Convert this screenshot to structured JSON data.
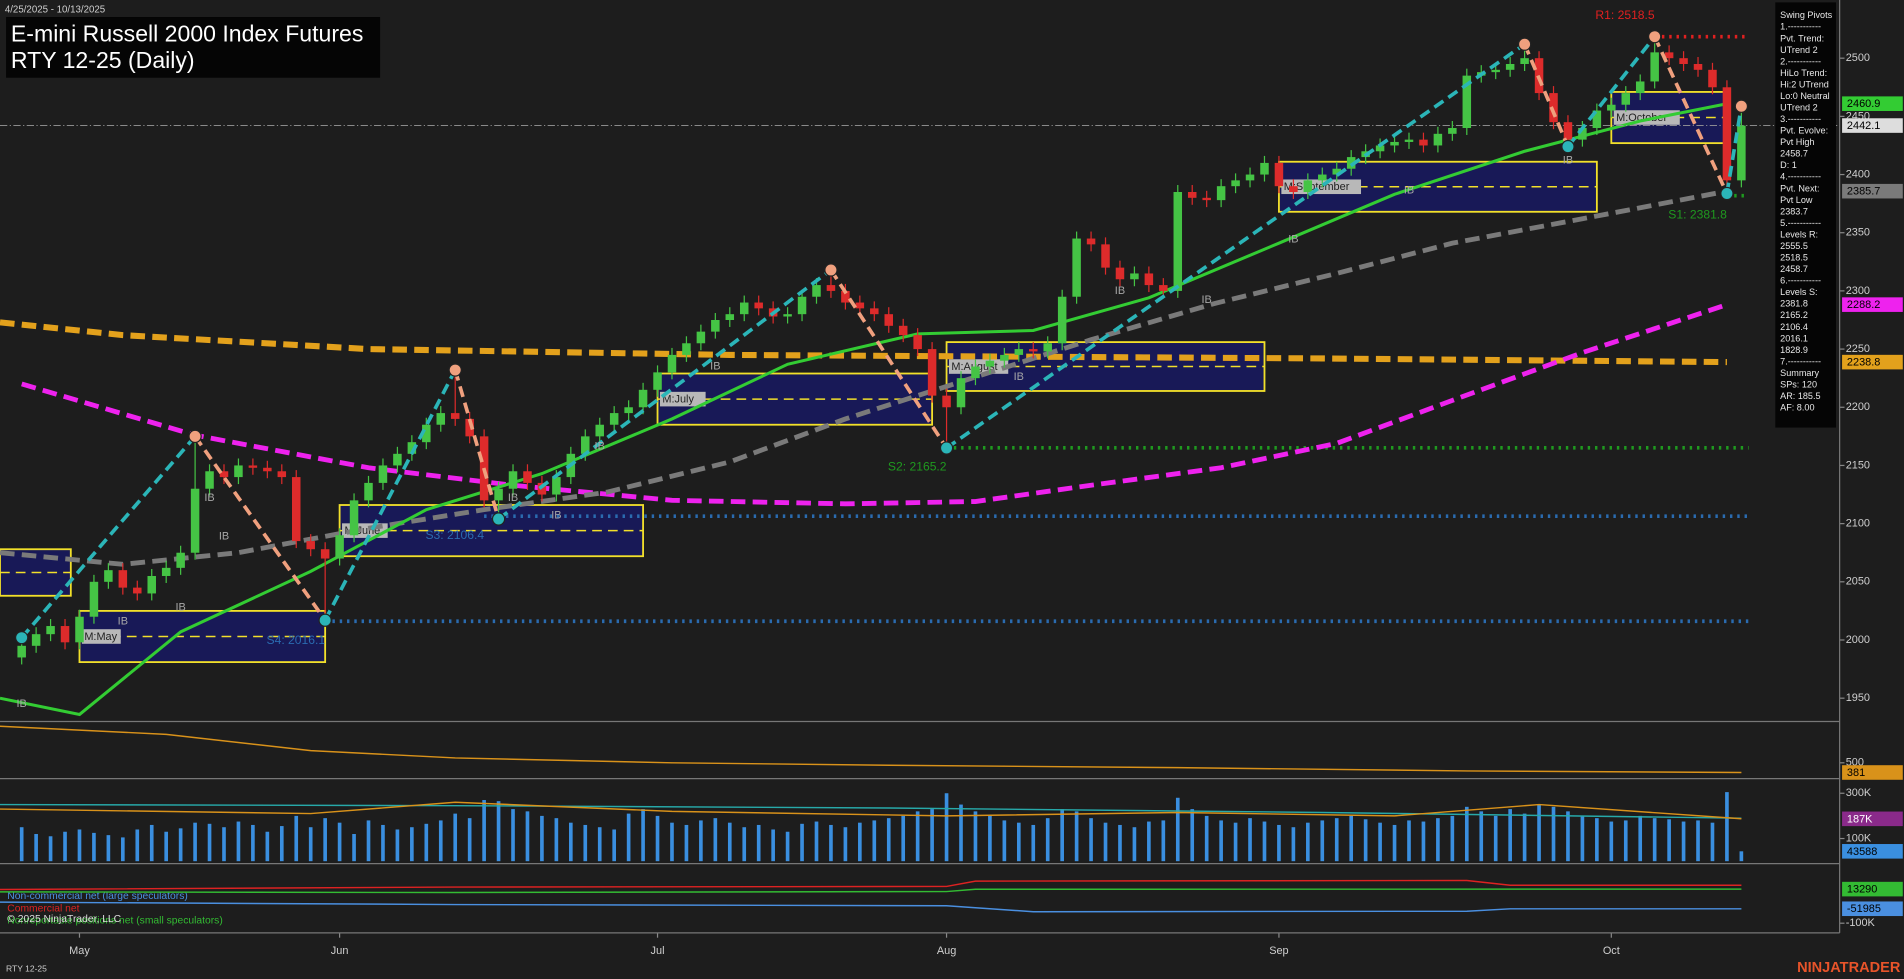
{
  "chart_data": {
    "type": "candlestick",
    "date_range": "4/25/2025 - 10/13/2025",
    "title": "E-mini Russell 2000 Index Futures",
    "subtitle": "RTY 12-25 (Daily)",
    "footer": "RTY 12-25",
    "brand": "NINJATRADER",
    "copyright": "© 2025 NinjaTrader, LLC",
    "xlim": [
      -1.5,
      125.8
    ],
    "xticks": [
      {
        "value": 4,
        "label": "May"
      },
      {
        "value": 22,
        "label": "Jun"
      },
      {
        "value": 44,
        "label": "Jul"
      },
      {
        "value": 64,
        "label": "Aug"
      },
      {
        "value": 87,
        "label": "Sep"
      },
      {
        "value": 110,
        "label": "Oct"
      }
    ],
    "ylim": [
      1931,
      2550
    ],
    "yticks": [
      1950,
      2000,
      2050,
      2100,
      2150,
      2200,
      2250,
      2300,
      2350,
      2400,
      2450,
      2500
    ],
    "up_color": "#45c445",
    "down_color": "#dd2b2b",
    "open": [
      1985,
      1995,
      2005,
      2012,
      1998,
      2020,
      2050,
      2060,
      2045,
      2040,
      2055,
      2062,
      2075,
      2130,
      2145,
      2140,
      2150,
      2148,
      2145,
      2140,
      2085,
      2078,
      2070,
      2090,
      2120,
      2135,
      2150,
      2160,
      2170,
      2185,
      2195,
      2190,
      2175,
      2120,
      2130,
      2145,
      2135,
      2125,
      2140,
      2160,
      2175,
      2185,
      2195,
      2200,
      2215,
      2230,
      2245,
      2255,
      2265,
      2275,
      2280,
      2290,
      2285,
      2278,
      2280,
      2295,
      2305,
      2300,
      2290,
      2285,
      2280,
      2270,
      2262,
      2250,
      2210,
      2200,
      2225,
      2235,
      2240,
      2245,
      2250,
      2248,
      2255,
      2295,
      2345,
      2340,
      2320,
      2310,
      2315,
      2305,
      2300,
      2385,
      2380,
      2378,
      2390,
      2395,
      2400,
      2410,
      2390,
      2385,
      2395,
      2400,
      2405,
      2415,
      2420,
      2425,
      2428,
      2430,
      2425,
      2435,
      2440,
      2485,
      2488,
      2490,
      2495,
      2500,
      2470,
      2445,
      2430,
      2440,
      2455,
      2460,
      2470,
      2480,
      2505,
      2500,
      2495,
      2490,
      2475,
      2395
    ],
    "high": [
      2001,
      2011,
      2018,
      2018,
      2026,
      2056,
      2066,
      2066,
      2051,
      2061,
      2068,
      2081,
      2175,
      2151,
      2151,
      2156,
      2156,
      2154,
      2151,
      2146,
      2091,
      2084,
      2096,
      2126,
      2141,
      2156,
      2166,
      2176,
      2191,
      2201,
      2232,
      2196,
      2181,
      2136,
      2151,
      2151,
      2141,
      2146,
      2166,
      2181,
      2191,
      2201,
      2206,
      2221,
      2236,
      2251,
      2261,
      2271,
      2281,
      2286,
      2296,
      2296,
      2291,
      2286,
      2301,
      2311,
      2318,
      2306,
      2296,
      2291,
      2286,
      2276,
      2268,
      2256,
      2216,
      2231,
      2241,
      2246,
      2251,
      2256,
      2256,
      2261,
      2301,
      2351,
      2351,
      2346,
      2326,
      2321,
      2321,
      2311,
      2391,
      2391,
      2386,
      2396,
      2401,
      2406,
      2416,
      2416,
      2396,
      2401,
      2406,
      2411,
      2421,
      2426,
      2431,
      2434,
      2436,
      2436,
      2441,
      2446,
      2491,
      2494,
      2496,
      2501,
      2512,
      2506,
      2476,
      2451,
      2446,
      2461,
      2466,
      2476,
      2486,
      2518.5,
      2511,
      2506,
      2501,
      2496,
      2481,
      2458.7
    ],
    "low": [
      1979,
      1989,
      1999,
      1992,
      1992,
      2014,
      2044,
      2039,
      2034,
      2034,
      2049,
      2056,
      2069,
      2124,
      2134,
      2134,
      2142,
      2139,
      2134,
      2079,
      2072,
      2017,
      2064,
      2084,
      2114,
      2129,
      2144,
      2154,
      2164,
      2179,
      2184,
      2169,
      2114,
      2104,
      2124,
      2129,
      2119,
      2119,
      2134,
      2154,
      2169,
      2179,
      2189,
      2194,
      2209,
      2224,
      2239,
      2249,
      2259,
      2269,
      2274,
      2279,
      2272,
      2272,
      2274,
      2289,
      2294,
      2284,
      2279,
      2274,
      2264,
      2256,
      2244,
      2204,
      2165,
      2194,
      2219,
      2229,
      2234,
      2239,
      2242,
      2242,
      2249,
      2289,
      2334,
      2314,
      2304,
      2304,
      2299,
      2294,
      2294,
      2374,
      2372,
      2372,
      2384,
      2389,
      2394,
      2384,
      2379,
      2379,
      2389,
      2394,
      2399,
      2409,
      2414,
      2419,
      2422,
      2419,
      2419,
      2429,
      2434,
      2479,
      2482,
      2484,
      2489,
      2464,
      2439,
      2424,
      2424,
      2434,
      2449,
      2454,
      2464,
      2474,
      2494,
      2489,
      2484,
      2469,
      2383.7,
      2389
    ],
    "close": [
      1995,
      2005,
      2012,
      1998,
      2020,
      2050,
      2060,
      2045,
      2040,
      2055,
      2062,
      2075,
      2130,
      2145,
      2140,
      2150,
      2148,
      2145,
      2140,
      2085,
      2078,
      2070,
      2090,
      2120,
      2135,
      2150,
      2160,
      2170,
      2185,
      2195,
      2190,
      2175,
      2120,
      2130,
      2145,
      2135,
      2125,
      2140,
      2160,
      2175,
      2185,
      2195,
      2200,
      2215,
      2230,
      2245,
      2255,
      2265,
      2275,
      2280,
      2290,
      2285,
      2278,
      2280,
      2295,
      2305,
      2300,
      2290,
      2285,
      2280,
      2270,
      2262,
      2250,
      2210,
      2200,
      2225,
      2235,
      2240,
      2245,
      2250,
      2248,
      2255,
      2295,
      2345,
      2340,
      2320,
      2310,
      2315,
      2305,
      2300,
      2385,
      2380,
      2378,
      2390,
      2395,
      2400,
      2410,
      2390,
      2385,
      2395,
      2400,
      2405,
      2415,
      2420,
      2425,
      2428,
      2430,
      2425,
      2435,
      2440,
      2485,
      2488,
      2490,
      2495,
      2500,
      2470,
      2445,
      2430,
      2440,
      2455,
      2460,
      2470,
      2480,
      2505,
      2500,
      2495,
      2490,
      2475,
      2395,
      2442.1
    ],
    "price_color": "#dddddd",
    "lines": [
      {
        "color": "#e3a11c",
        "style": "dashed",
        "width": 5,
        "x": [
          -1.5,
          7,
          24,
          49,
          90,
          118
        ],
        "y": [
          2273,
          2262,
          2250,
          2245,
          2242,
          2238.8
        ]
      },
      {
        "color": "#ee22ee",
        "style": "dashed",
        "width": 4,
        "x": [
          0,
          12,
          24,
          34,
          45,
          57,
          66,
          74,
          83,
          91,
          99,
          108,
          118
        ],
        "y": [
          2220,
          2176,
          2148,
          2133,
          2120,
          2117,
          2119,
          2133,
          2148,
          2169,
          2206,
          2247,
          2288.2
        ]
      },
      {
        "color": "#7a7a7a",
        "style": "dashed",
        "width": 4,
        "x": [
          -1.5,
          7,
          15,
          24,
          32,
          40.5,
          49,
          57,
          66,
          74,
          82.5,
          91,
          99,
          108,
          118
        ],
        "y": [
          2075,
          2065,
          2075,
          2096,
          2112,
          2127,
          2153,
          2190,
          2226,
          2258,
          2289,
          2315,
          2341,
          2362,
          2385.7
        ]
      },
      {
        "color": "#33cc33",
        "style": "solid",
        "width": 2.5,
        "x": [
          -1.5,
          4,
          11,
          20,
          28,
          36,
          45,
          53,
          62,
          70,
          78,
          87,
          95,
          104,
          112,
          118
        ],
        "y": [
          1950,
          1936,
          2007,
          2059,
          2112,
          2143,
          2190,
          2237,
          2263,
          2266,
          2294,
          2341,
          2383,
          2420,
          2446,
          2460.9
        ]
      }
    ],
    "pivots": {
      "up_color": "#2bb5b8",
      "down_color": "#f0a07e",
      "x": [
        0,
        12,
        21,
        30,
        33,
        56,
        64,
        104,
        107,
        113,
        118,
        119
      ],
      "y": [
        2002,
        2175,
        2017,
        2232,
        2104,
        2318,
        2165,
        2512,
        2424,
        2518.5,
        2383.7,
        2458.7
      ]
    },
    "levels": [
      {
        "label": "R1: 2518.5",
        "value": 2518.5,
        "from": 113,
        "color": "#e02020"
      },
      {
        "label": "S1: 2381.8",
        "value": 2381.8,
        "from": 118,
        "color": "#1f9a1f"
      },
      {
        "label": "S2: 2165.2",
        "value": 2165.2,
        "from": 64,
        "color": "#1f9a1f"
      },
      {
        "label": "S3: 2106.4",
        "value": 2106.4,
        "from": 32,
        "color": "#2a6bb0"
      },
      {
        "label": "S4: 2016.1",
        "value": 2016.1,
        "from": 21,
        "color": "#2a6bb0"
      }
    ],
    "monthly_ranges": [
      {
        "x": [
          -1.5,
          3.4
        ],
        "y": [
          2038,
          2078
        ]
      },
      {
        "label": "M:May",
        "x": [
          4,
          21
        ],
        "y": [
          1981,
          2025
        ]
      },
      {
        "label": "M:June",
        "x": [
          22,
          43
        ],
        "y": [
          2072,
          2116
        ]
      },
      {
        "label": "M:July",
        "x": [
          44,
          63
        ],
        "y": [
          2185,
          2229
        ]
      },
      {
        "label": "M:August",
        "x": [
          64,
          86
        ],
        "y": [
          2214,
          2256
        ]
      },
      {
        "label": "M:September",
        "x": [
          87,
          109
        ],
        "y": [
          2368,
          2411
        ]
      },
      {
        "label": "M:October",
        "x": [
          110,
          118
        ],
        "y": [
          2427,
          2471
        ]
      }
    ],
    "ib_markers": {
      "label": "IB",
      "x": [
        0,
        7,
        11,
        13,
        14,
        34,
        37,
        40,
        48,
        69,
        76,
        82,
        88,
        96,
        107
      ],
      "y": [
        1945,
        2016,
        2028,
        2122,
        2089,
        2122,
        2107,
        2166,
        2235,
        2226,
        2300,
        2292,
        2344,
        2386,
        2412
      ]
    },
    "info_panel": [
      "Swing Pivots",
      "1.-----------",
      "Pvt. Trend:",
      "UTrend 2",
      "2.-----------",
      "HiLo Trend:",
      "Hi:2 UTrend",
      "Lo:0 Neutral",
      "UTrend 2",
      "3.-----------",
      "Pvt. Evolve:",
      "Pvt High",
      "2458.7",
      "D: 1",
      "4.-----------",
      "Pvt. Next:",
      "Pvt Low",
      "2383.7",
      "5.-----------",
      "Levels R:",
      "2555.5",
      "2518.5",
      "2458.7",
      "6.-----------",
      "Levels S:",
      "2381.8",
      "2165.2",
      "2106.4",
      "2016.1",
      "1828.9",
      "7.-----------",
      "Summary",
      "SPs: 120",
      "AR: 185.5",
      "AF: 8.00"
    ],
    "panels": [
      {
        "type": "line",
        "ylim": [
          321,
          993
        ],
        "yticks": [
          500
        ],
        "series": [
          {
            "color": "#d9921a",
            "tag": true,
            "x": [
              -1.5,
              10,
              20,
              30,
              45,
              60,
              80,
              100,
              119
            ],
            "values": [
              950,
              850,
              650,
              560,
              500,
              470,
              440,
              400,
              381
            ]
          }
        ]
      },
      {
        "type": "bar",
        "ylim": [
          0,
          354000
        ],
        "yticks": [
          {
            "value": 300000,
            "label": "300K"
          },
          {
            "value": 100000,
            "label": "100K"
          }
        ],
        "color": "#3a8fe0",
        "tag": true,
        "values": [
          150000,
          120000,
          110000,
          130000,
          140000,
          125000,
          115000,
          105000,
          140000,
          160000,
          130000,
          145000,
          170000,
          165000,
          150000,
          175000,
          160000,
          130000,
          155000,
          200000,
          150000,
          190000,
          170000,
          120000,
          180000,
          160000,
          140000,
          150000,
          165000,
          180000,
          210000,
          190000,
          270000,
          265000,
          230000,
          220000,
          200000,
          190000,
          170000,
          160000,
          150000,
          140000,
          210000,
          230000,
          200000,
          170000,
          160000,
          180000,
          190000,
          170000,
          150000,
          160000,
          140000,
          130000,
          165000,
          175000,
          160000,
          150000,
          170000,
          180000,
          190000,
          200000,
          220000,
          230000,
          300000,
          250000,
          220000,
          200000,
          180000,
          170000,
          160000,
          190000,
          230000,
          220000,
          190000,
          170000,
          160000,
          150000,
          175000,
          180000,
          280000,
          230000,
          200000,
          180000,
          170000,
          190000,
          175000,
          160000,
          150000,
          170000,
          180000,
          190000,
          200000,
          185000,
          170000,
          160000,
          180000,
          175000,
          190000,
          200000,
          240000,
          220000,
          200000,
          230000,
          210000,
          250000,
          240000,
          220000,
          200000,
          190000,
          175000,
          180000,
          200000,
          190000,
          185000,
          175000,
          180000,
          170000,
          305000,
          43588
        ],
        "series": [
          {
            "color": "#27a9a9",
            "x": [
              -1.5,
              30,
              60,
              90,
              119
            ],
            "values": [
              250000,
              245000,
              235000,
              215000,
              190000
            ]
          },
          {
            "color": "#d9921a",
            "x": [
              -1.5,
              20,
              30,
              45,
              64,
              80,
              95,
              105,
              119
            ],
            "values": [
              230000,
              210000,
              260000,
              220000,
              200000,
              215000,
              200000,
              250000,
              187000
            ]
          }
        ],
        "tags": [
          {
            "value": 187000,
            "label": "187K",
            "color": "#8a2a8a"
          }
        ]
      },
      {
        "type": "line",
        "ylim": [
          -128000,
          94000
        ],
        "yticks": [
          {
            "value": -100000,
            "label": "-100K"
          }
        ],
        "series": [
          {
            "name": "Non-commercial net (large speculators)",
            "color": "#4a8fe0",
            "tag": true,
            "x": [
              -1.5,
              30,
              64,
              70,
              100,
              103,
              119
            ],
            "values": [
              -30000,
              -38000,
              -42000,
              -62000,
              -60000,
              -51985,
              -51985
            ]
          },
          {
            "name": "Commercial net",
            "color": "#dd2222",
            "x": [
              -1.5,
              30,
              64,
              66,
              100,
              103,
              119
            ],
            "values": [
              12000,
              20000,
              22000,
              40000,
              42000,
              26000,
              26000
            ]
          },
          {
            "name": "Nonreportable positions net (small speculators)",
            "color": "#33bb33",
            "tag": true,
            "x": [
              -1.5,
              30,
              64,
              66,
              119
            ],
            "values": [
              4000,
              2000,
              5000,
              13000,
              13290
            ]
          }
        ]
      }
    ]
  }
}
